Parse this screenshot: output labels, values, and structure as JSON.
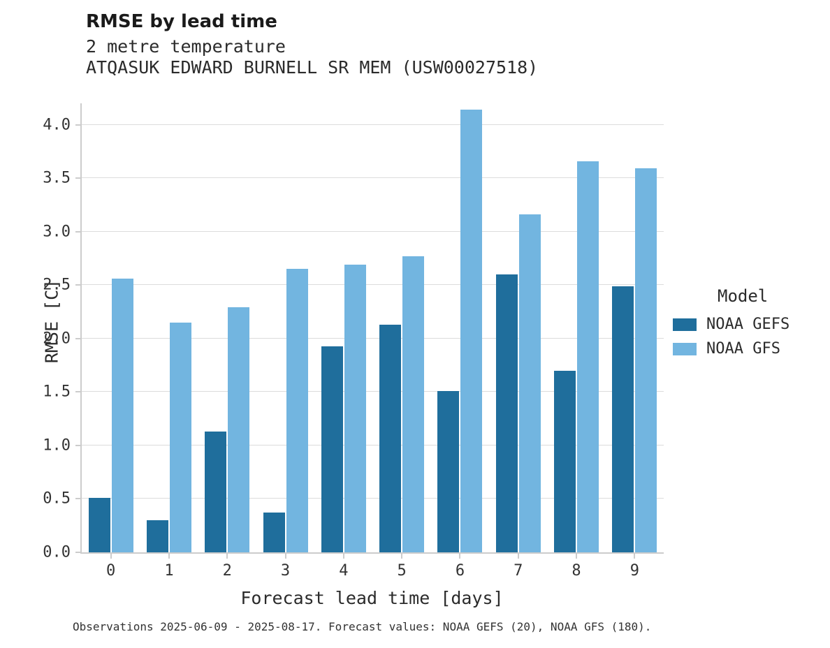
{
  "title": "RMSE by lead time",
  "subtitle_line1": "2 metre temperature",
  "subtitle_line2": "ATQASUK EDWARD BURNELL SR MEM (USW00027518)",
  "caption": "Observations 2025-06-09 - 2025-08-17. Forecast values: NOAA GEFS (20), NOAA GFS (180).",
  "legend": {
    "title": "Model",
    "entries": [
      {
        "label": "NOAA GEFS",
        "color": "#1f6e9c"
      },
      {
        "label": "NOAA GFS",
        "color": "#72b5e0"
      }
    ]
  },
  "chart_data": {
    "type": "bar",
    "title": "RMSE by lead time",
    "subtitle": "2 metre temperature — ATQASUK EDWARD BURNELL SR MEM (USW00027518)",
    "xlabel": "Forecast lead time [days]",
    "ylabel": "RMSE [C]",
    "categories": [
      "0",
      "1",
      "2",
      "3",
      "4",
      "5",
      "6",
      "7",
      "8",
      "9"
    ],
    "series": [
      {
        "name": "NOAA GEFS",
        "color": "#1f6e9c",
        "values": [
          0.51,
          0.3,
          1.13,
          0.37,
          1.93,
          2.13,
          1.51,
          2.6,
          1.7,
          2.49
        ]
      },
      {
        "name": "NOAA GFS",
        "color": "#72b5e0",
        "values": [
          2.56,
          2.15,
          2.29,
          2.65,
          2.69,
          2.77,
          4.14,
          3.16,
          3.66,
          3.59
        ]
      }
    ],
    "ylim": [
      0,
      4.2
    ],
    "yticks": [
      {
        "value": 0.0,
        "label": "0.0"
      },
      {
        "value": 0.5,
        "label": "0.5"
      },
      {
        "value": 1.0,
        "label": "1.0"
      },
      {
        "value": 1.5,
        "label": "1.5"
      },
      {
        "value": 2.0,
        "label": "2.0"
      },
      {
        "value": 2.5,
        "label": "2.5"
      },
      {
        "value": 3.0,
        "label": "3.0"
      },
      {
        "value": 3.5,
        "label": "3.5"
      },
      {
        "value": 4.0,
        "label": "4.0"
      }
    ],
    "grid": true,
    "legend_position": "right"
  }
}
